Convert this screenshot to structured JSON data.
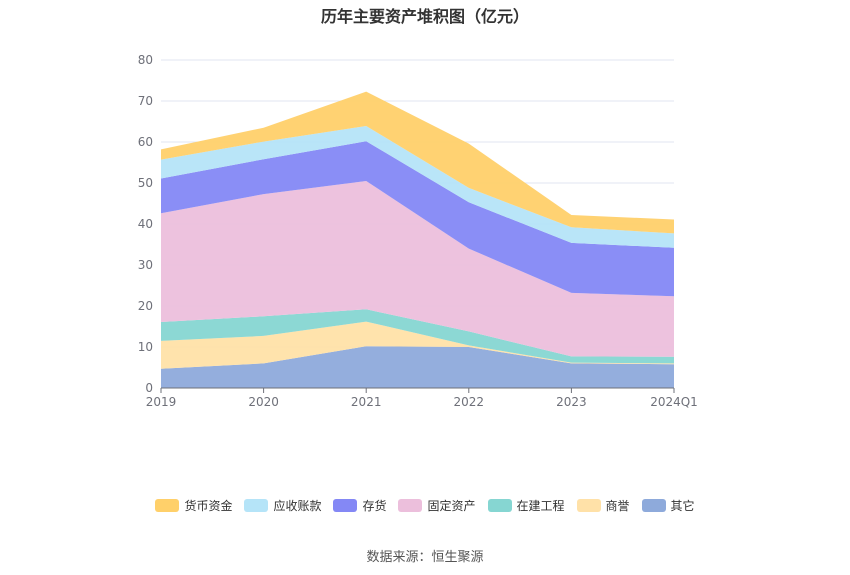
{
  "title": "历年主要资产堆积图（亿元）",
  "source": "数据来源：恒生聚源",
  "chart_data": {
    "type": "area",
    "stacked": true,
    "categories": [
      "2019",
      "2020",
      "2021",
      "2022",
      "2023",
      "2024Q1"
    ],
    "ylim": [
      0,
      80
    ],
    "yticks": [
      0,
      10,
      20,
      30,
      40,
      50,
      60,
      70,
      80
    ],
    "grid": true,
    "legend_position": "bottom",
    "series": [
      {
        "name": "其它",
        "color": "#8eaadb",
        "values": [
          4.7,
          6.0,
          10.2,
          10.0,
          6.0,
          5.8
        ]
      },
      {
        "name": "商誉",
        "color": "#ffe1a8",
        "values": [
          6.8,
          6.7,
          6.0,
          0.4,
          0.2,
          0.2
        ]
      },
      {
        "name": "在建工程",
        "color": "#86d6d2",
        "values": [
          4.6,
          4.8,
          3.0,
          3.4,
          1.5,
          1.6
        ]
      },
      {
        "name": "固定资产",
        "color": "#ecbfdc",
        "values": [
          26.5,
          29.8,
          31.3,
          20.2,
          15.5,
          14.8
        ]
      },
      {
        "name": "存货",
        "color": "#8488f5",
        "values": [
          8.5,
          8.5,
          9.7,
          11.3,
          12.2,
          11.8
        ]
      },
      {
        "name": "应收账款",
        "color": "#b5e4f8",
        "values": [
          4.6,
          4.3,
          3.7,
          3.5,
          3.8,
          3.5
        ]
      },
      {
        "name": "货币资金",
        "color": "#ffd06a",
        "values": [
          2.5,
          3.4,
          8.4,
          10.8,
          3.0,
          3.4
        ]
      }
    ],
    "legend_order": [
      "货币资金",
      "应收账款",
      "存货",
      "固定资产",
      "在建工程",
      "商誉",
      "其它"
    ]
  }
}
